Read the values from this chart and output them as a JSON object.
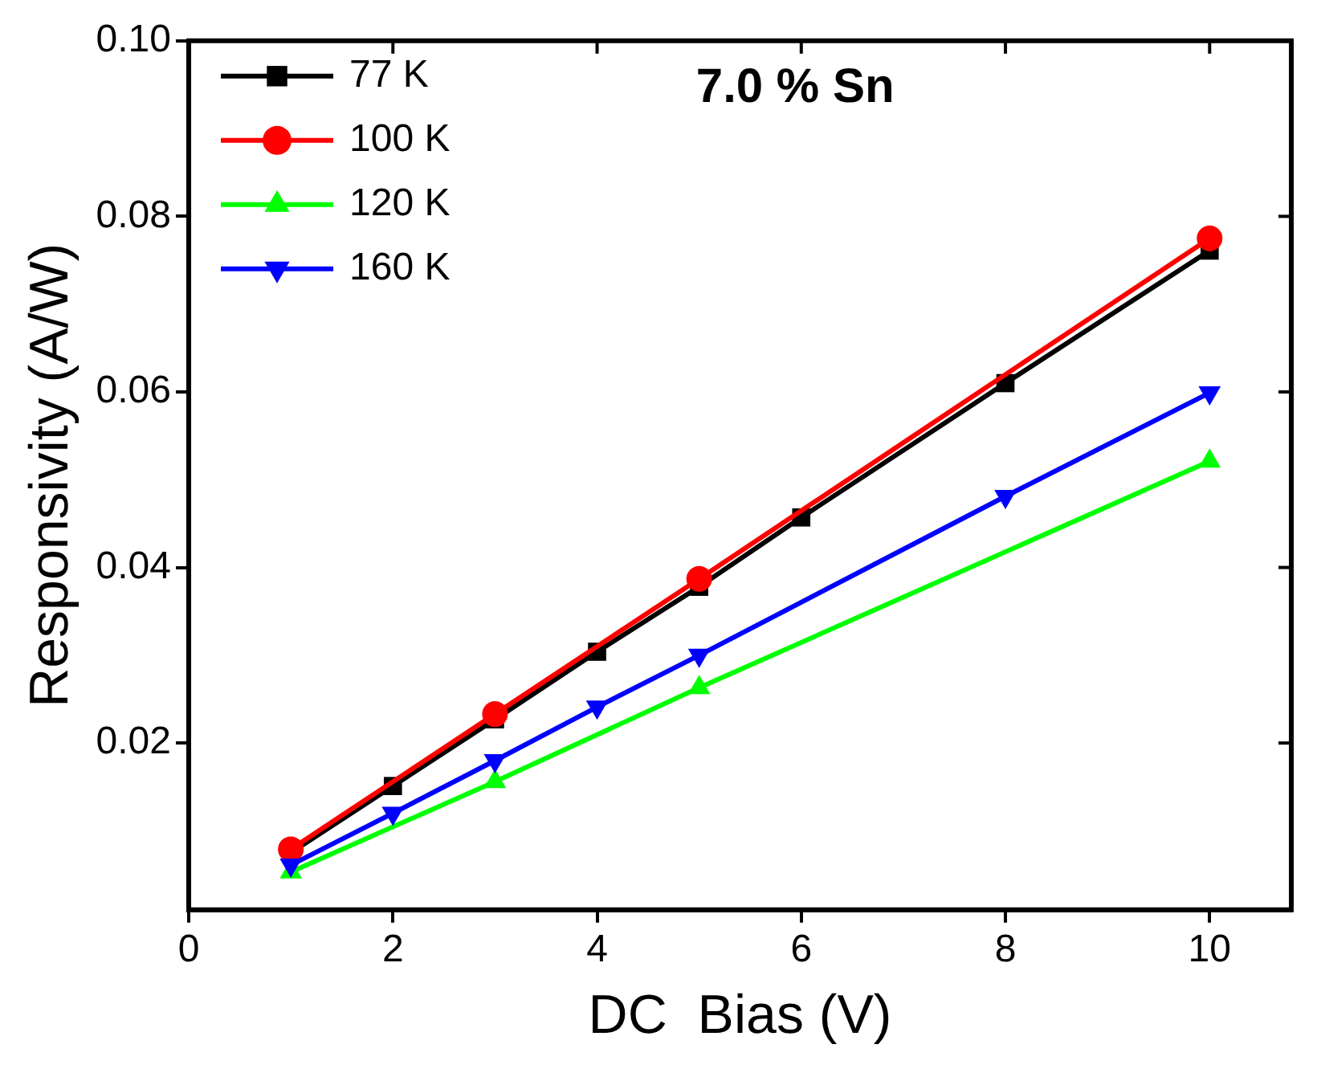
{
  "chart_data": {
    "type": "line",
    "xlabel": "DC  Bias (V)",
    "ylabel": "Responsivity (A/W)",
    "annotations": [
      "7.0 % Sn"
    ],
    "xlim": [
      0,
      10.8
    ],
    "xticks": [
      0,
      2,
      4,
      6,
      8,
      10
    ],
    "ylim": [
      0.001,
      0.1
    ],
    "yticks": [
      0.02,
      0.04,
      0.06,
      0.08,
      {
        "value": 0.1,
        "label": "0.10"
      }
    ],
    "grid": false,
    "legend": "top left",
    "series": [
      {
        "name": "77 K",
        "color": "#000000",
        "marker": "square",
        "x": [
          1,
          2,
          3,
          4,
          5,
          6,
          8,
          10
        ],
        "values": [
          0.0075,
          0.0151,
          0.0227,
          0.0304,
          0.0378,
          0.0457,
          0.061,
          0.0761
        ]
      },
      {
        "name": "100 K",
        "color": "#ff0000",
        "marker": "circle",
        "x": [
          1,
          3,
          5,
          10
        ],
        "values": [
          0.0079,
          0.0233,
          0.0387,
          0.0775
        ]
      },
      {
        "name": "120 K",
        "color": "#00ff00",
        "marker": "triangle",
        "x": [
          1,
          3,
          5,
          10
        ],
        "values": [
          0.0053,
          0.0156,
          0.0263,
          0.0521
        ]
      },
      {
        "name": "160 K",
        "color": "#0000ff",
        "marker": "triangle-down",
        "x": [
          1,
          2,
          3,
          4,
          5,
          8,
          10
        ],
        "values": [
          0.0061,
          0.012,
          0.018,
          0.0241,
          0.03,
          0.0481,
          0.0599
        ]
      }
    ]
  }
}
